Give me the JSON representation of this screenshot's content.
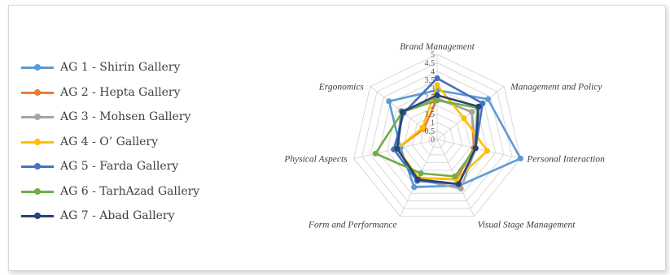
{
  "chart_data": {
    "type": "radar",
    "categories": [
      "Brand Management",
      "Management and Policy",
      "Personal Interaction",
      "Visual Stage Management",
      "Form and Performance",
      "Physical Aspects",
      "Ergonomics"
    ],
    "rmax": 5,
    "tick_values": [
      0,
      0.5,
      1,
      1.5,
      2,
      2.5,
      3,
      3.5,
      4,
      4.5,
      5
    ],
    "tick_labels": [
      "0",
      "0.5",
      "1",
      "1.5",
      "2",
      "2.5",
      "3",
      "3.5",
      "4",
      "4.5",
      "5"
    ],
    "legend_position": "left",
    "series": [
      {
        "name": "AG 1 - Shirin Gallery",
        "color": "#5B9BD5",
        "values": [
          2.9,
          3.8,
          5.0,
          3.0,
          3.1,
          2.2,
          3.6
        ]
      },
      {
        "name": "AG 2 - Hepta Gallery",
        "color": "#ED7D31",
        "values": [
          2.4,
          2.6,
          2.2,
          2.6,
          2.5,
          2.4,
          1.0
        ]
      },
      {
        "name": "AG 3 - Mohsen Gallery",
        "color": "#A5A5A5",
        "values": [
          2.4,
          2.6,
          2.3,
          3.2,
          2.6,
          2.4,
          2.7
        ]
      },
      {
        "name": "AG 4 - O’ Gallery",
        "color": "#FFC000",
        "values": [
          3.2,
          2.0,
          3.0,
          2.6,
          2.5,
          2.4,
          1.1
        ]
      },
      {
        "name": "AG 5 - Farda Gallery",
        "color": "#4472C4",
        "values": [
          3.6,
          3.4,
          2.3,
          2.9,
          2.7,
          2.6,
          2.5
        ]
      },
      {
        "name": "AG 6 - TarhAzad Gallery",
        "color": "#70AD47",
        "values": [
          2.3,
          3.0,
          2.3,
          2.4,
          2.2,
          3.7,
          2.6
        ]
      },
      {
        "name": "AG 7 - Abad Gallery",
        "color": "#264478",
        "values": [
          2.6,
          3.1,
          2.3,
          2.9,
          2.6,
          2.4,
          2.6
        ]
      }
    ]
  }
}
